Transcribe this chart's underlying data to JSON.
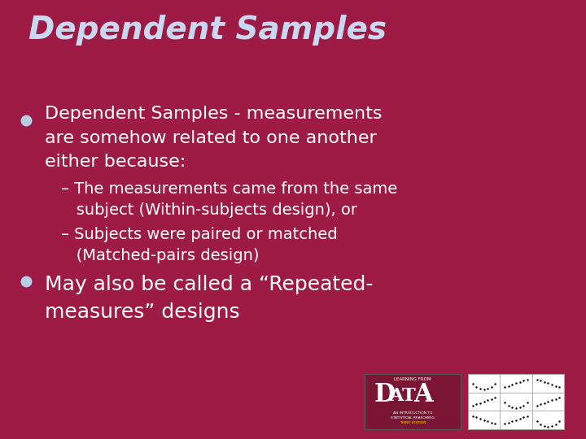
{
  "background_color": "#9E1B45",
  "title": "Dependent Samples",
  "title_color": "#C8D8F0",
  "title_fontsize": 28,
  "title_style": "italic",
  "title_weight": "bold",
  "content_color": "#FFFFFF",
  "bullet_color": "#B8CCE8",
  "bullet1_line1": "Dependent Samples - measurements",
  "bullet1_line2": "are somehow related to one another",
  "bullet1_line3": "either because:",
  "sub1_line1": "– The measurements came from the same",
  "sub1_line2": "   subject (Within-subjects design), or",
  "sub2_line1": "– Subjects were paired or matched",
  "sub2_line2": "   (Matched-pairs design)",
  "bullet2_line1": "May also be called a “Repeated-",
  "bullet2_line2": "measures” designs",
  "bullet_fontsize": 16,
  "sub_fontsize": 14,
  "title2_fontsize": 18
}
